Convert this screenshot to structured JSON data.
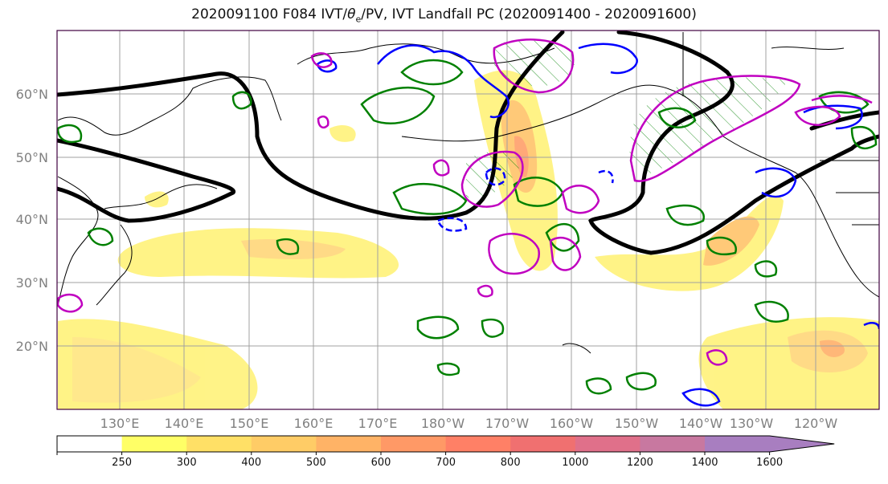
{
  "title": {
    "prefix": "2020091100 F084 IVT/",
    "theta": "θ",
    "theta_sub": "e",
    "suffix": "/PV, IVT Landfall PC (2020091400 - 2020091600)"
  },
  "lat_labels": [
    "60°N",
    "50°N",
    "40°N",
    "30°N",
    "20°N"
  ],
  "lon_labels": [
    "130°E",
    "140°E",
    "150°E",
    "160°E",
    "170°E",
    "180°W",
    "170°W",
    "160°W",
    "150°W",
    "140°W",
    "130°W",
    "120°W"
  ],
  "colorbar": {
    "ticks": [
      "250",
      "300",
      "400",
      "500",
      "600",
      "700",
      "800",
      "1000",
      "1200",
      "1400",
      "1600"
    ],
    "colors": [
      "#ffffff",
      "#ffff66",
      "#ffe066",
      "#ffcc66",
      "#ffb366",
      "#ff9966",
      "#ff8066",
      "#f07070",
      "#e0708a",
      "#c878a0",
      "#a87ec0",
      "#a87ec0"
    ]
  },
  "legend_colors": {
    "ivt_fill": "#ffe680",
    "pv_contour": "#000000",
    "theta_e": "#008000",
    "blue_contour": "#0000ff",
    "landfall_pc": "#c000c0"
  }
}
